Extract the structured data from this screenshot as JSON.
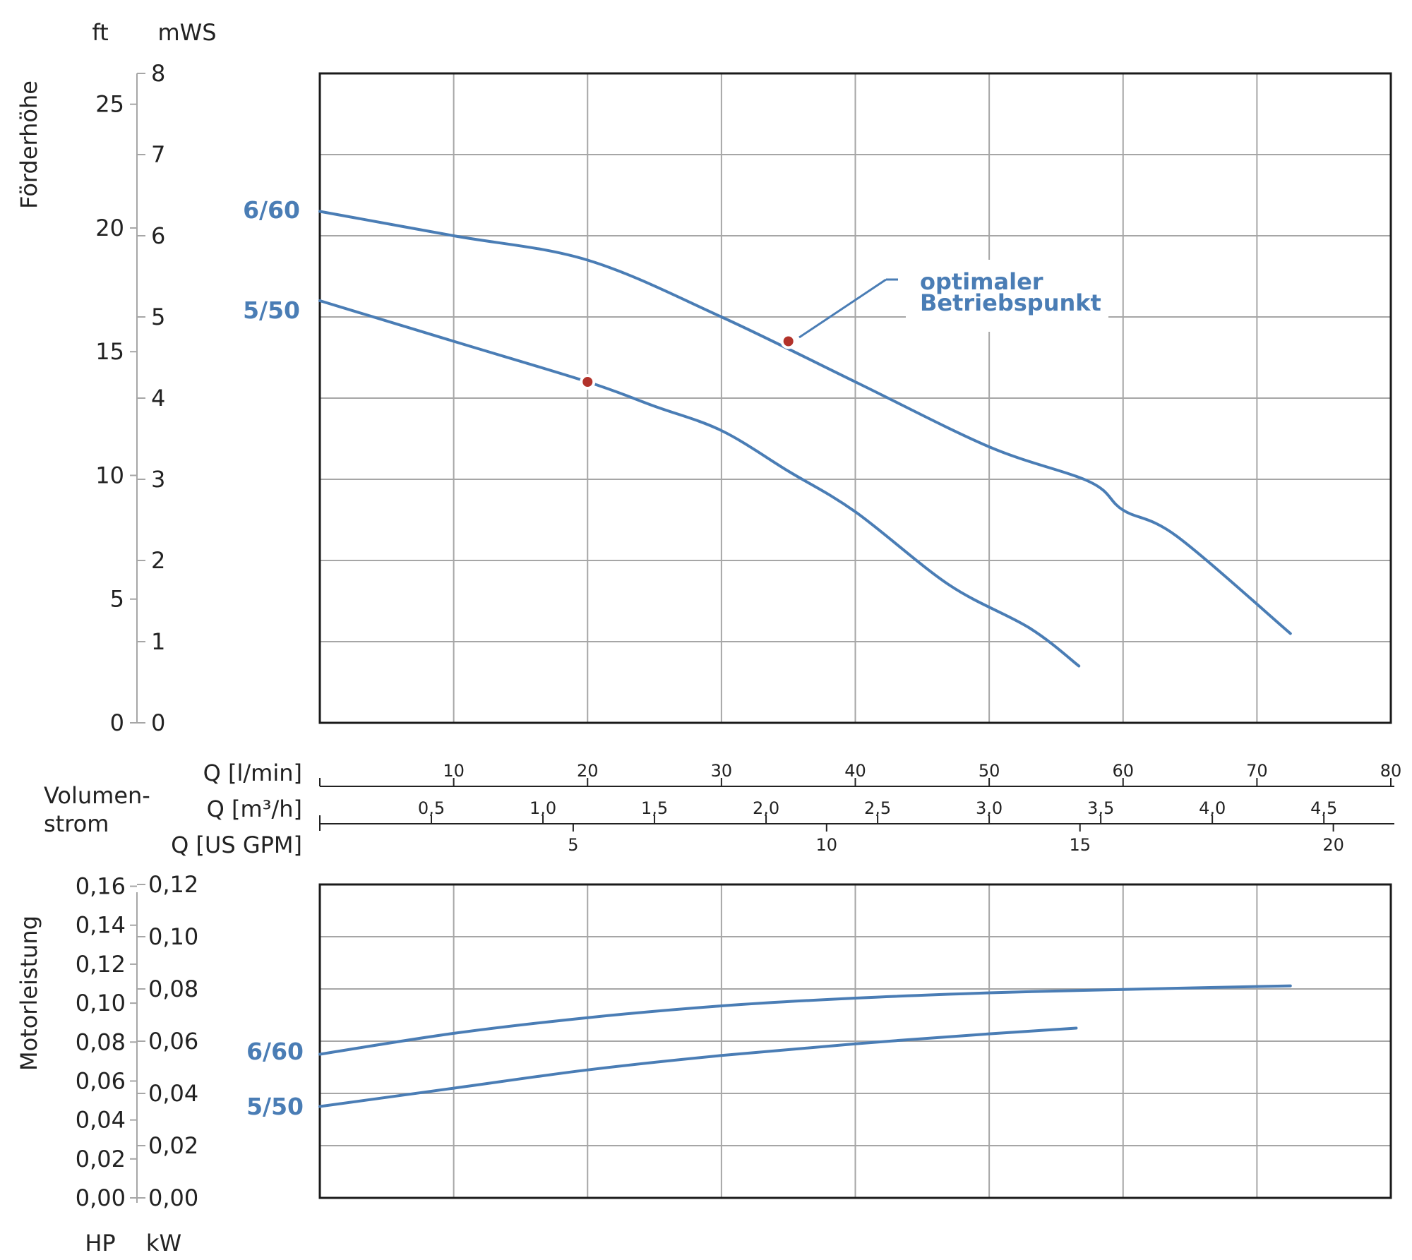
{
  "colors": {
    "curve": "#4a7db5",
    "label": "#4a7db5",
    "point": "#b2322a",
    "grid": "#a6a6a6",
    "frame": "#1a1a1a",
    "text": "#222222"
  },
  "volume_axis": {
    "label_line1": "Volumen-",
    "label_line2": "strom",
    "lmin_label": "Q [l/min]",
    "m3h_label": "Q [m³/h]",
    "gpm_label": "Q [US GPM]",
    "lmin_ticks": [
      "10",
      "20",
      "30",
      "40",
      "50",
      "60",
      "70",
      "80"
    ],
    "m3h_ticks": [
      "0,5",
      "1,0",
      "1,5",
      "2,0",
      "2,5",
      "3,0",
      "3,5",
      "4,0",
      "4,5"
    ],
    "gpm_ticks": [
      "5",
      "10",
      "15",
      "20"
    ]
  },
  "annotation": {
    "line1": "optimaler",
    "line2": "Betriebspunkt"
  },
  "chart_data": [
    {
      "type": "line",
      "ylabel": "Förderhöhe",
      "y_units": [
        "ft",
        "mWS"
      ],
      "x_unit": "Q [l/min]",
      "xlim": [
        0,
        80
      ],
      "ylim": [
        0,
        8
      ],
      "yticks_mws": [
        "0",
        "1",
        "2",
        "3",
        "4",
        "5",
        "6",
        "7",
        "8"
      ],
      "yticks_ft": [
        "0",
        "5",
        "10",
        "15",
        "20",
        "25"
      ],
      "grid": true,
      "series": [
        {
          "name": "6/60",
          "x": [
            0,
            10,
            20,
            30,
            40,
            50,
            57.5,
            60,
            64,
            72.5
          ],
          "y": [
            6.3,
            6.0,
            5.7,
            5.0,
            4.2,
            3.4,
            2.97,
            2.62,
            2.3,
            1.1
          ]
        },
        {
          "name": "5/50",
          "x": [
            0,
            10,
            20,
            25,
            30,
            35,
            40,
            47,
            53,
            56.7
          ],
          "y": [
            5.2,
            4.7,
            4.2,
            3.9,
            3.6,
            3.1,
            2.6,
            1.7,
            1.17,
            0.7
          ]
        }
      ],
      "operating_points": [
        {
          "series": "6/60",
          "x": 35,
          "y": 4.7
        },
        {
          "series": "5/50",
          "x": 20,
          "y": 4.2
        }
      ]
    },
    {
      "type": "line",
      "ylabel": "Motorleistung",
      "y_units": [
        "HP",
        "kW"
      ],
      "x_unit": "Q [l/min]",
      "xlim": [
        0,
        80
      ],
      "ylim_kw": [
        0,
        0.12
      ],
      "yticks_kw": [
        "0,00",
        "0,02",
        "0,04",
        "0,06",
        "0,08",
        "0,10",
        "0,12"
      ],
      "yticks_hp": [
        "0,00",
        "0,02",
        "0,04",
        "0,06",
        "0,08",
        "0,10",
        "0,12",
        "0,14",
        "0,16"
      ],
      "grid": true,
      "series": [
        {
          "name": "6/60",
          "x": [
            0,
            10,
            20,
            30,
            40,
            50,
            60,
            72.5
          ],
          "y": [
            0.055,
            0.063,
            0.069,
            0.0735,
            0.0765,
            0.0785,
            0.0798,
            0.0812
          ]
        },
        {
          "name": "5/50",
          "x": [
            0,
            10,
            20,
            30,
            40,
            50,
            56.5
          ],
          "y": [
            0.035,
            0.042,
            0.049,
            0.0545,
            0.059,
            0.0628,
            0.065
          ]
        }
      ]
    }
  ]
}
